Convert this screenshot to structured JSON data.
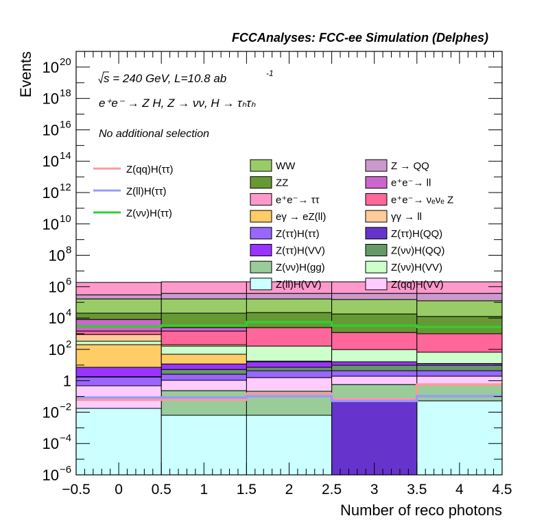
{
  "chart_data": {
    "type": "bar",
    "subtype": "stacked-histogram-log",
    "title": "FCCAnalyses: FCC-ee Simulation (Delphes)",
    "xlabel": "Number of reco photons",
    "ylabel": "Events",
    "xlim": [
      -0.5,
      4.5
    ],
    "ylim": [
      1e-06,
      1e+21
    ],
    "yscale": "log",
    "x_ticks": [
      "−0.5",
      "0",
      "0.5",
      "1",
      "1.5",
      "2",
      "2.5",
      "3",
      "3.5",
      "4",
      "4.5"
    ],
    "x_tick_values": [
      -0.5,
      0,
      0.5,
      1,
      1.5,
      2,
      2.5,
      3,
      3.5,
      4,
      4.5
    ],
    "y_ticks": [
      {
        "exp": "20",
        "value": 1e+20
      },
      {
        "exp": "18",
        "value": 1e+18
      },
      {
        "exp": "16",
        "value": 1e+16
      },
      {
        "exp": "14",
        "value": 100000000000000.0
      },
      {
        "exp": "12",
        "value": 1000000000000.0
      },
      {
        "exp": "10",
        "value": 10000000000.0
      },
      {
        "exp": "8",
        "value": 100000000.0
      },
      {
        "exp": "6",
        "value": 1000000.0
      },
      {
        "exp": "4",
        "value": 10000.0
      },
      {
        "exp": "2",
        "value": 100.0
      },
      {
        "exp": "",
        "value": 1,
        "plain": "1"
      },
      {
        "exp": "−2",
        "value": 0.01
      },
      {
        "exp": "−4",
        "value": 0.0001
      },
      {
        "exp": "−6",
        "value": 1e-06
      }
    ],
    "bin_edges": [
      -0.5,
      0.5,
      1.5,
      2.5,
      3.5,
      4.5
    ],
    "annotations": {
      "line1_prefix": "s = 240 GeV, L=10.8 ab",
      "line1_sup": "-1",
      "line2": "e⁺e⁻ → Z H, Z  → νν, H → τₕτₕ",
      "line3": "No additional selection"
    },
    "stack_note": "cumulative log10 top of each stacked layer per bin, bottom to top",
    "stack": [
      {
        "name": "Z(ll)H(VV)",
        "legend": "Z(ll)H(VV)",
        "color": "#ccffff",
        "log10_top": [
          -1.76,
          -2.2,
          -2.2,
          -6.0,
          -1.28
        ]
      },
      {
        "name": "Z(ττ)H(QQ)",
        "legend": "Z(ττ)H(QQ)",
        "color": "#6633cc",
        "log10_top": [
          -1.76,
          -2.2,
          -2.2,
          -1.11,
          -1.28
        ]
      },
      {
        "name": "Z(νν)H(gg)",
        "legend": "Z(νν)H(gg)",
        "color": "#99cc99",
        "log10_top": [
          -1.76,
          -0.63,
          -0.67,
          -0.24,
          -0.24
        ]
      },
      {
        "name": "Z(qq)H(VV)",
        "legend": "Z(qq)H(VV)",
        "color": "#ffccff",
        "log10_top": [
          -0.32,
          0.03,
          0.2,
          0.29,
          0.29
        ]
      },
      {
        "name": "Z(ττ)H(ττ)",
        "legend": "Z(ττ)H(ττ)",
        "color": "#9966ff",
        "log10_top": [
          0.24,
          0.42,
          0.64,
          0.64,
          0.64
        ]
      },
      {
        "name": "Z(νν)H(QQ)",
        "legend": "Z(νν)H(QQ)",
        "color": "#669966",
        "log10_top": [
          0.26,
          0.72,
          0.86,
          0.99,
          0.99
        ]
      },
      {
        "name": "Z(ττ)H(VV)",
        "legend": "Z(ττ)H(VV)",
        "color": "#9933ff",
        "log10_top": [
          0.86,
          1.07,
          1.21,
          1.21,
          1.1
        ]
      },
      {
        "name": "eγ → eZ(ll)",
        "legend": "eγ → eZ(ll)",
        "color": "#ffcc66",
        "log10_top": [
          2.3,
          1.69,
          1.25,
          1.21,
          1.1
        ]
      },
      {
        "name": "Z(νν)H(VV)",
        "legend": "Z(νν)H(VV)",
        "color": "#ccffcc",
        "log10_top": [
          2.52,
          2.21,
          2.21,
          1.99,
          1.82
        ]
      },
      {
        "name": "γγ → ll",
        "legend": "γγ → ll",
        "color": "#ffcc99",
        "log10_top": [
          2.95,
          2.3,
          2.21,
          1.99,
          1.82
        ]
      },
      {
        "name": "e⁺e⁻→ νₑνₑ Z",
        "legend": "e⁺e⁻→ νₑνₑ Z",
        "color": "#ff6699",
        "log10_top": [
          3.17,
          3.17,
          3.39,
          3.08,
          3.0
        ]
      },
      {
        "name": "e⁺e⁻→ ll",
        "legend": "e⁺e⁻→ ll",
        "color": "#cc66cc",
        "log10_top": [
          3.91,
          3.39,
          3.39,
          3.08,
          3.0
        ]
      },
      {
        "name": "ZZ",
        "legend": "ZZ",
        "color": "#669933",
        "log10_top": [
          4.31,
          4.31,
          4.35,
          4.26,
          4.1
        ]
      },
      {
        "name": "WW",
        "legend": "WW",
        "color": "#99cc66",
        "log10_top": [
          5.22,
          5.22,
          5.22,
          5.18,
          5.1
        ]
      },
      {
        "name": "Z → QQ",
        "legend": "Z → QQ",
        "color": "#cc99cc",
        "log10_top": [
          5.48,
          5.57,
          5.57,
          5.57,
          5.57
        ]
      },
      {
        "name": "e⁺e⁻→ ττ",
        "legend": "e⁺e⁻→ ττ",
        "color": "#ff99cc",
        "log10_top": [
          6.27,
          6.31,
          6.31,
          6.31,
          6.31
        ]
      }
    ],
    "signals": [
      {
        "name": "Z(qq)H(ττ)",
        "color": "#ff9999",
        "log10_values": [
          -1.21,
          -1.21,
          -0.83,
          -1.16,
          -0.24
        ]
      },
      {
        "name": "Z(ll)H(ττ)",
        "color": "#9999ff",
        "log10_values": [
          -1.07,
          -1.07,
          -0.98,
          -1.28,
          -0.98
        ]
      },
      {
        "name": "Z(νν)H(ττ)",
        "color": "#33cc33",
        "log10_values": [
          3.47,
          3.52,
          3.74,
          3.52,
          3.43
        ]
      }
    ],
    "legend": {
      "placement": "top-center",
      "signal_entries": [
        "Z(qq)H(ττ)",
        "Z(ll)H(ττ)",
        "Z(νν)H(ττ)"
      ],
      "col1": [
        "WW",
        "ZZ",
        "e⁺e⁻→ ττ",
        "eγ → eZ(ll)",
        "Z(ττ)H(ττ)",
        "Z(ττ)H(VV)",
        "Z(νν)H(gg)",
        "Z(ll)H(VV)"
      ],
      "col2": [
        "Z → QQ",
        "e⁺e⁻→ ll",
        "e⁺e⁻→ νₑνₑ Z",
        "γγ → ll",
        "Z(ττ)H(QQ)",
        "Z(νν)H(QQ)",
        "Z(νν)H(VV)",
        "Z(qq)H(VV)"
      ]
    },
    "grid": false
  }
}
